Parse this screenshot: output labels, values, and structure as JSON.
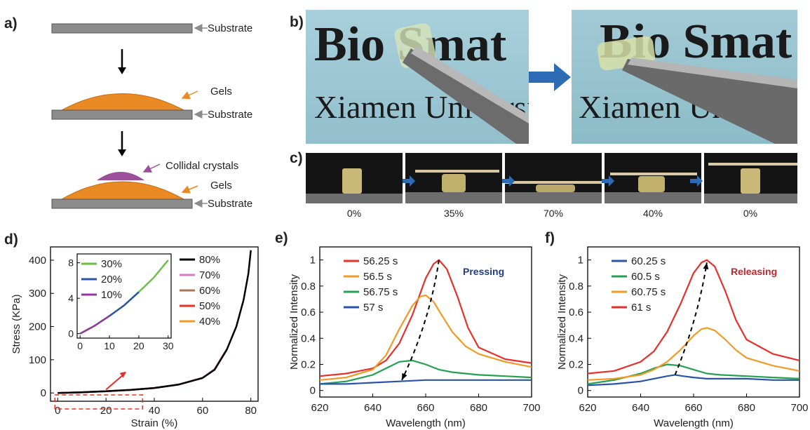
{
  "panels": {
    "a": "a)",
    "b": "b)",
    "c": "c)",
    "d": "d)",
    "e": "e)",
    "f": "f)"
  },
  "schematic": {
    "substrate": "Substrate",
    "gels": "Gels",
    "crystals": "Collidal crystals"
  },
  "photos": {
    "line1": "Bio Smat",
    "line2": "Xiamen University"
  },
  "strip_labels": [
    "0%",
    "35%",
    "70%",
    "40%",
    "0%"
  ],
  "colors": {
    "substrate": "#8c8c8c",
    "gel": "#e98a24",
    "crystals": "#9b4f9b",
    "photo_bg": "#9fc6d4",
    "photo_bg2": "#8fbfca",
    "arrow_blue": "#2e6bb5",
    "red": "#e8302a",
    "orange": "#f39a24",
    "green": "#23a050",
    "blue": "#2a53a8",
    "black": "#000000",
    "pink": "#d878c4",
    "brown": "#a7795a",
    "lime": "#6cbe45",
    "purple": "#8e3b9a",
    "press": "#1f3c88",
    "release": "#c8262a"
  },
  "chart_data": [
    {
      "id": "d",
      "type": "line",
      "xlabel": "Strain (%)",
      "ylabel": "Stress (KPa)",
      "xlim": [
        -3,
        83
      ],
      "ylim": [
        -25,
        440
      ],
      "xticks": [
        0,
        20,
        40,
        60,
        80
      ],
      "yticks": [
        0,
        100,
        200,
        300,
        400
      ],
      "legend": [
        "80%",
        "70%",
        "60%",
        "50%",
        "40%"
      ],
      "series": [
        {
          "name": "80%",
          "color": "#000000",
          "x": [
            0,
            10,
            20,
            30,
            40,
            50,
            60,
            65,
            70,
            74,
            77,
            79,
            80
          ],
          "y": [
            0,
            2,
            5,
            9,
            15,
            25,
            45,
            70,
            130,
            200,
            280,
            360,
            430
          ]
        },
        {
          "name": "70%",
          "color": "#d878c4",
          "x": [
            0,
            10,
            20,
            30,
            40,
            50,
            60,
            65,
            70
          ],
          "y": [
            0,
            2,
            5,
            9,
            15,
            25,
            46,
            72,
            132
          ]
        },
        {
          "name": "60%",
          "color": "#a7795a",
          "x": [
            0,
            10,
            20,
            30,
            40,
            50,
            60
          ],
          "y": [
            0,
            2,
            5,
            9,
            15,
            25,
            46
          ]
        },
        {
          "name": "50%",
          "color": "#e8302a",
          "x": [
            0,
            10,
            20,
            30,
            40,
            50
          ],
          "y": [
            0,
            2,
            5,
            9,
            15,
            25
          ]
        },
        {
          "name": "40%",
          "color": "#f39a24",
          "x": [
            0,
            10,
            20,
            30,
            40
          ],
          "y": [
            0,
            2,
            5,
            9,
            15
          ]
        }
      ],
      "inset": {
        "xlim": [
          -1,
          31
        ],
        "ylim": [
          -0.5,
          9
        ],
        "xticks": [
          0,
          10,
          20,
          30
        ],
        "yticks": [
          0,
          4,
          8
        ],
        "legend": [
          "30%",
          "20%",
          "10%"
        ],
        "series": [
          {
            "name": "30%",
            "color": "#6cbe45",
            "x": [
              0,
              5,
              10,
              15,
              20,
              25,
              30
            ],
            "y": [
              0,
              0.9,
              2.0,
              3.2,
              4.7,
              6.3,
              8.3
            ]
          },
          {
            "name": "20%",
            "color": "#2a53a8",
            "x": [
              0,
              5,
              10,
              15,
              20
            ],
            "y": [
              0,
              0.9,
              2.0,
              3.2,
              4.7
            ]
          },
          {
            "name": "10%",
            "color": "#8e3b9a",
            "x": [
              0,
              5,
              10
            ],
            "y": [
              0,
              0.9,
              2.0
            ]
          }
        ]
      }
    },
    {
      "id": "e",
      "type": "line",
      "xlabel": "Wavelength (nm)",
      "ylabel": "Normalized Intensity",
      "annotation": "Pressing",
      "xlim": [
        620,
        700
      ],
      "ylim": [
        -0.05,
        1.1
      ],
      "xticks": [
        620,
        640,
        660,
        680,
        700
      ],
      "yticks": [
        0,
        0.2,
        0.4,
        0.6,
        0.8,
        1
      ],
      "series": [
        {
          "name": "56.25 s",
          "color": "#e8302a",
          "x": [
            620,
            630,
            640,
            645,
            650,
            655,
            660,
            663,
            665,
            668,
            672,
            676,
            680,
            690,
            700
          ],
          "y": [
            0.11,
            0.13,
            0.17,
            0.23,
            0.36,
            0.58,
            0.86,
            0.97,
            1.0,
            0.93,
            0.72,
            0.48,
            0.33,
            0.24,
            0.21
          ]
        },
        {
          "name": "56.5 s",
          "color": "#f39a24",
          "x": [
            620,
            630,
            640,
            645,
            650,
            655,
            658,
            660,
            663,
            666,
            670,
            675,
            680,
            690,
            700
          ],
          "y": [
            0.08,
            0.1,
            0.16,
            0.27,
            0.47,
            0.65,
            0.72,
            0.73,
            0.68,
            0.58,
            0.45,
            0.34,
            0.28,
            0.22,
            0.18
          ]
        },
        {
          "name": "56.75 s",
          "color": "#23a050",
          "x": [
            620,
            630,
            640,
            645,
            650,
            655,
            660,
            665,
            670,
            680,
            690,
            700
          ],
          "y": [
            0.05,
            0.07,
            0.12,
            0.17,
            0.22,
            0.23,
            0.2,
            0.16,
            0.14,
            0.12,
            0.11,
            0.1
          ]
        },
        {
          "name": "57 s",
          "color": "#2a53a8",
          "x": [
            620,
            630,
            640,
            650,
            660,
            670,
            680,
            690,
            700
          ],
          "y": [
            0.05,
            0.05,
            0.06,
            0.07,
            0.08,
            0.08,
            0.08,
            0.08,
            0.08
          ]
        }
      ]
    },
    {
      "id": "f",
      "type": "line",
      "xlabel": "Wavelength (nm)",
      "ylabel": "Normalized Intensity",
      "annotation": "Releasing",
      "xlim": [
        620,
        700
      ],
      "ylim": [
        -0.05,
        1.1
      ],
      "xticks": [
        620,
        640,
        660,
        680,
        700
      ],
      "yticks": [
        0,
        0.2,
        0.4,
        0.6,
        0.8,
        1
      ],
      "series": [
        {
          "name": "60.25 s",
          "color": "#2a53a8",
          "x": [
            620,
            630,
            640,
            645,
            650,
            653,
            656,
            660,
            665,
            670,
            680,
            690,
            700
          ],
          "y": [
            0.04,
            0.05,
            0.07,
            0.09,
            0.11,
            0.12,
            0.11,
            0.1,
            0.09,
            0.09,
            0.09,
            0.08,
            0.08
          ]
        },
        {
          "name": "60.5 s",
          "color": "#23a050",
          "x": [
            620,
            630,
            640,
            645,
            650,
            655,
            660,
            665,
            670,
            680,
            690,
            700
          ],
          "y": [
            0.05,
            0.08,
            0.13,
            0.17,
            0.2,
            0.19,
            0.16,
            0.13,
            0.12,
            0.11,
            0.1,
            0.09
          ]
        },
        {
          "name": "60.75 s",
          "color": "#f39a24",
          "x": [
            620,
            630,
            640,
            645,
            650,
            655,
            660,
            663,
            665,
            668,
            672,
            676,
            680,
            690,
            700
          ],
          "y": [
            0.08,
            0.09,
            0.12,
            0.16,
            0.22,
            0.31,
            0.42,
            0.47,
            0.48,
            0.46,
            0.39,
            0.31,
            0.25,
            0.19,
            0.15
          ]
        },
        {
          "name": "61 s",
          "color": "#e8302a",
          "x": [
            620,
            630,
            640,
            645,
            650,
            655,
            660,
            663,
            665,
            668,
            672,
            676,
            680,
            690,
            700
          ],
          "y": [
            0.13,
            0.15,
            0.22,
            0.3,
            0.45,
            0.66,
            0.9,
            0.98,
            1.0,
            0.95,
            0.76,
            0.54,
            0.39,
            0.28,
            0.23
          ]
        }
      ]
    }
  ]
}
